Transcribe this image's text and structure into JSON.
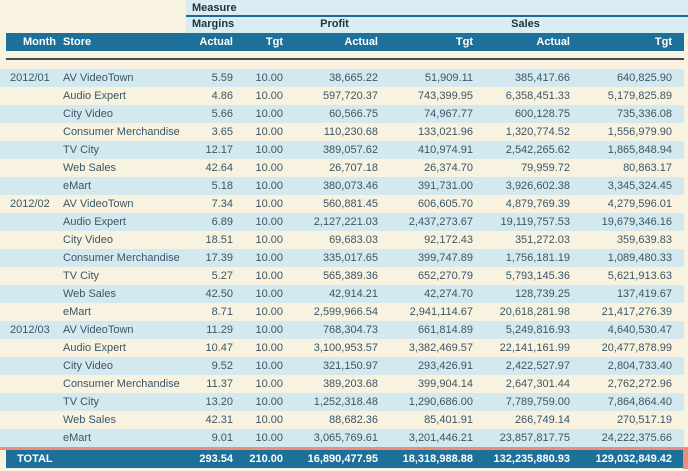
{
  "table": {
    "measure_label": "Measure",
    "group_headers": [
      "Margins",
      "Profit",
      "Sales"
    ],
    "column_headers": [
      "Month",
      "Store",
      "Actual",
      "Tgt",
      "Actual",
      "Tgt",
      "Actual",
      "Tgt"
    ],
    "rows": [
      {
        "month": "2012/01",
        "store": "AV VideoTown",
        "values": [
          "5.59",
          "10.00",
          "38,665.22",
          "51,909.11",
          "385,417.66",
          "640,825.90"
        ]
      },
      {
        "month": "",
        "store": "Audio Expert",
        "values": [
          "4.86",
          "10.00",
          "597,720.37",
          "743,399.95",
          "6,358,451.33",
          "5,179,825.89"
        ]
      },
      {
        "month": "",
        "store": "City Video",
        "values": [
          "5.66",
          "10.00",
          "60,566.75",
          "74,967.77",
          "600,128.75",
          "735,336.08"
        ]
      },
      {
        "month": "",
        "store": "Consumer Merchandise",
        "values": [
          "3.65",
          "10.00",
          "110,230.68",
          "133,021.96",
          "1,320,774.52",
          "1,556,979.90"
        ]
      },
      {
        "month": "",
        "store": "TV City",
        "values": [
          "12.17",
          "10.00",
          "389,057.62",
          "410,974.91",
          "2,542,265.62",
          "1,865,848.94"
        ]
      },
      {
        "month": "",
        "store": "Web Sales",
        "values": [
          "42.64",
          "10.00",
          "26,707.18",
          "26,374.70",
          "79,959.72",
          "80,863.17"
        ]
      },
      {
        "month": "",
        "store": "eMart",
        "values": [
          "5.18",
          "10.00",
          "380,073.46",
          "391,731.00",
          "3,926,602.38",
          "3,345,324.45"
        ]
      },
      {
        "month": "2012/02",
        "store": "AV VideoTown",
        "values": [
          "7.34",
          "10.00",
          "560,881.45",
          "606,605.70",
          "4,879,769.39",
          "4,279,596.01"
        ]
      },
      {
        "month": "",
        "store": "Audio Expert",
        "values": [
          "6.89",
          "10.00",
          "2,127,221.03",
          "2,437,273.67",
          "19,119,757.53",
          "19,679,346.16"
        ]
      },
      {
        "month": "",
        "store": "City Video",
        "values": [
          "18.51",
          "10.00",
          "69,683.03",
          "92,172.43",
          "351,272.03",
          "359,639.83"
        ]
      },
      {
        "month": "",
        "store": "Consumer Merchandise",
        "values": [
          "17.39",
          "10.00",
          "335,017.65",
          "399,747.89",
          "1,756,181.19",
          "1,089,480.33"
        ]
      },
      {
        "month": "",
        "store": "TV City",
        "values": [
          "5.27",
          "10.00",
          "565,389.36",
          "652,270.79",
          "5,793,145.36",
          "5,621,913.63"
        ]
      },
      {
        "month": "",
        "store": "Web Sales",
        "values": [
          "42.50",
          "10.00",
          "42,914.21",
          "42,274.70",
          "128,739.25",
          "137,419.67"
        ]
      },
      {
        "month": "",
        "store": "eMart",
        "values": [
          "8.71",
          "10.00",
          "2,599,966.54",
          "2,941,114.67",
          "20,618,281.98",
          "21,417,276.39"
        ]
      },
      {
        "month": "2012/03",
        "store": "AV VideoTown",
        "values": [
          "11.29",
          "10.00",
          "768,304.73",
          "661,814.89",
          "5,249,816.93",
          "4,640,530.47"
        ]
      },
      {
        "month": "",
        "store": "Audio Expert",
        "values": [
          "10.47",
          "10.00",
          "3,100,953.57",
          "3,382,469.57",
          "22,141,161.99",
          "20,477,878.99"
        ]
      },
      {
        "month": "",
        "store": "City Video",
        "values": [
          "9.52",
          "10.00",
          "321,150.97",
          "293,426.91",
          "2,422,527.97",
          "2,804,733.40"
        ]
      },
      {
        "month": "",
        "store": "Consumer Merchandise",
        "values": [
          "11.37",
          "10.00",
          "389,203.68",
          "399,904.14",
          "2,647,301.44",
          "2,762,272.96"
        ]
      },
      {
        "month": "",
        "store": "TV City",
        "values": [
          "13.20",
          "10.00",
          "1,252,318.48",
          "1,290,686.00",
          "7,789,759.00",
          "7,864,864.40"
        ]
      },
      {
        "month": "",
        "store": "Web Sales",
        "values": [
          "42.31",
          "10.00",
          "88,682.36",
          "85,401.91",
          "266,749.14",
          "270,517.19"
        ]
      },
      {
        "month": "",
        "store": "eMart",
        "values": [
          "9.01",
          "10.00",
          "3,065,769.61",
          "3,201,446.21",
          "23,857,817.75",
          "24,222,375.66"
        ]
      }
    ],
    "total": {
      "label": "TOTAL",
      "values": [
        "293.54",
        "210.00",
        "16,890,477.95",
        "18,318,988.88",
        "132,235,880.93",
        "129,032,849.42"
      ]
    },
    "colors": {
      "header_blue": "#1d7099",
      "band_cyan": "#daedf2",
      "row_alt_blue": "#d4e8ef",
      "background_cream": "#f8f2e1",
      "accent_salmon": "#f18d76",
      "rule_dark": "#4b4b4b",
      "rule_teal": "#1e6b8f",
      "text_dark": "#3a5766"
    }
  }
}
